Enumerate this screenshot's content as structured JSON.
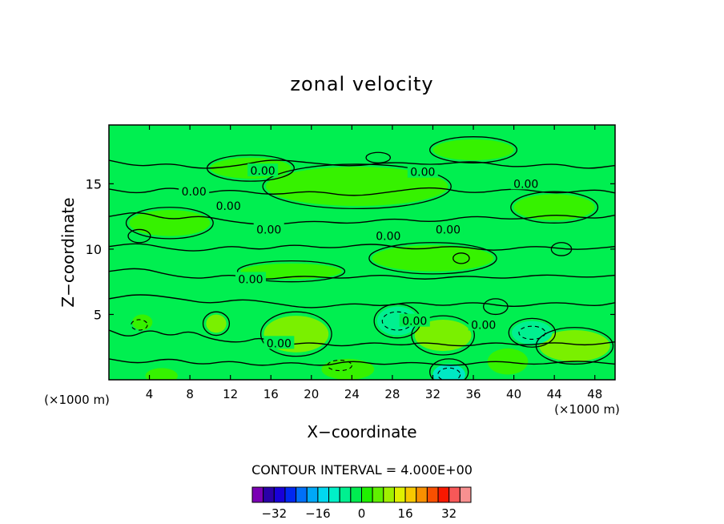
{
  "chart_data": {
    "type": "heatmap",
    "title": "zonal velocity",
    "xlabel": "X−coordinate",
    "ylabel": "Z−coordinate",
    "x_unit": "(×1000 m)",
    "z_unit": "(×1000 m)",
    "xlim": [
      0,
      50
    ],
    "ylim": [
      0,
      19.5
    ],
    "x_ticks": [
      4,
      8,
      12,
      16,
      20,
      24,
      28,
      32,
      36,
      40,
      44,
      48
    ],
    "y_ticks": [
      5,
      10,
      15
    ],
    "contour_interval_text": "CONTOUR INTERVAL = 4.000E+00",
    "contour_labels": [
      {
        "text": "0.00",
        "x": 15.2,
        "z": 16.0
      },
      {
        "text": "0.00",
        "x": 31.0,
        "z": 15.9
      },
      {
        "text": "0.00",
        "x": 41.2,
        "z": 15.0
      },
      {
        "text": "0.00",
        "x": 8.4,
        "z": 14.4
      },
      {
        "text": "0.00",
        "x": 11.8,
        "z": 13.3
      },
      {
        "text": "0.00",
        "x": 15.8,
        "z": 11.5
      },
      {
        "text": "0.00",
        "x": 27.6,
        "z": 11.0
      },
      {
        "text": "0.00",
        "x": 33.5,
        "z": 11.5
      },
      {
        "text": "0.00",
        "x": 14.0,
        "z": 7.7
      },
      {
        "text": "0.00",
        "x": 30.2,
        "z": 4.5
      },
      {
        "text": "0.00",
        "x": 37.0,
        "z": 4.2
      },
      {
        "text": "0.00",
        "x": 16.8,
        "z": 2.8
      }
    ],
    "colorbar": {
      "colors": [
        "#7a00b4",
        "#2a00a8",
        "#1800d8",
        "#0028f0",
        "#0070f8",
        "#00a8f8",
        "#00d8f0",
        "#00f0c8",
        "#00f090",
        "#00ec50",
        "#20f000",
        "#60f000",
        "#a0f000",
        "#e0f000",
        "#f8c800",
        "#f89000",
        "#f85000",
        "#f81800",
        "#f85858",
        "#f89090"
      ],
      "tick_labels": [
        "−32",
        "−16",
        "0",
        "16",
        "32"
      ],
      "tick_values": [
        -32,
        -16,
        0,
        16,
        32
      ],
      "range": [
        -40,
        40
      ]
    },
    "field_colors": {
      "background": "#00ef50",
      "positive_patch": "#36f200",
      "strong_positive_patch": "#7af000",
      "negative_patch": "#00f090",
      "strong_negative_patch": "#00e8c4"
    },
    "patches": [
      {
        "x": 18.5,
        "z": 3.5,
        "rx": 3.2,
        "rz": 1.4,
        "level": 2
      },
      {
        "x": 33.0,
        "z": 3.4,
        "rx": 2.8,
        "rz": 1.2,
        "level": 2
      },
      {
        "x": 10.6,
        "z": 4.3,
        "rx": 1.0,
        "rz": 0.7,
        "level": 2
      },
      {
        "x": 46.0,
        "z": 2.6,
        "rx": 3.5,
        "rz": 1.2,
        "level": 2
      },
      {
        "x": 23.6,
        "z": 0.8,
        "rx": 2.6,
        "rz": 0.8,
        "level": 1
      },
      {
        "x": 39.4,
        "z": 1.4,
        "rx": 2.0,
        "rz": 1.0,
        "level": 1
      },
      {
        "x": 28.5,
        "z": 4.5,
        "rx": 2.0,
        "rz": 1.1,
        "level": -1
      },
      {
        "x": 41.8,
        "z": 3.6,
        "rx": 2.0,
        "rz": 0.9,
        "level": -1
      },
      {
        "x": 33.6,
        "z": 0.4,
        "rx": 1.6,
        "rz": 0.8,
        "level": -2
      },
      {
        "x": 3.3,
        "z": 4.4,
        "rx": 1.0,
        "rz": 0.6,
        "level": 1
      },
      {
        "x": 5.2,
        "z": 0.3,
        "rx": 1.6,
        "rz": 0.6,
        "level": 1
      },
      {
        "x": 18.0,
        "z": 8.3,
        "rx": 5.0,
        "rz": 0.6,
        "level": 1
      },
      {
        "x": 32.0,
        "z": 9.3,
        "rx": 6.0,
        "rz": 1.0,
        "level": 1
      },
      {
        "x": 24.5,
        "z": 14.8,
        "rx": 9.0,
        "rz": 1.5,
        "level": 1
      },
      {
        "x": 14.0,
        "z": 16.2,
        "rx": 4.0,
        "rz": 0.8,
        "level": 1
      },
      {
        "x": 6.0,
        "z": 12.0,
        "rx": 4.0,
        "rz": 1.0,
        "level": 1
      },
      {
        "x": 44.0,
        "z": 13.2,
        "rx": 4.0,
        "rz": 1.0,
        "level": 1
      },
      {
        "x": 36.0,
        "z": 17.6,
        "rx": 4.0,
        "rz": 0.8,
        "level": 1
      }
    ],
    "contours": [
      [
        [
          0,
          16.8
        ],
        [
          3,
          16.3
        ],
        [
          6,
          16.6
        ],
        [
          9,
          16.1
        ],
        [
          13,
          16.4
        ],
        [
          16,
          16.9
        ],
        [
          20,
          16.6
        ],
        [
          24,
          16.3
        ],
        [
          28,
          16.7
        ],
        [
          32,
          16.4
        ],
        [
          36,
          16.8
        ],
        [
          40,
          16.2
        ],
        [
          44,
          16.6
        ],
        [
          47,
          16.1
        ],
        [
          50,
          16.4
        ]
      ],
      [
        [
          0,
          14.6
        ],
        [
          3,
          14.2
        ],
        [
          6,
          14.8
        ],
        [
          9,
          14.2
        ],
        [
          12,
          14.6
        ],
        [
          16,
          14.1
        ],
        [
          20,
          14.5
        ],
        [
          24,
          14.0
        ],
        [
          28,
          14.4
        ],
        [
          32,
          14.8
        ],
        [
          36,
          14.2
        ],
        [
          40,
          14.7
        ],
        [
          44,
          14.2
        ],
        [
          48,
          14.6
        ],
        [
          50,
          14.3
        ]
      ],
      [
        [
          0,
          12.5
        ],
        [
          3,
          12.9
        ],
        [
          6,
          12.2
        ],
        [
          9,
          12.6
        ],
        [
          12,
          12.1
        ],
        [
          16,
          11.8
        ],
        [
          20,
          12.2
        ],
        [
          24,
          11.9
        ],
        [
          28,
          12.4
        ],
        [
          32,
          12.0
        ],
        [
          36,
          12.6
        ],
        [
          40,
          12.2
        ],
        [
          44,
          12.7
        ],
        [
          48,
          12.3
        ],
        [
          50,
          12.6
        ]
      ],
      [
        [
          0,
          10.2
        ],
        [
          3,
          10.5
        ],
        [
          6,
          10.0
        ],
        [
          9,
          9.8
        ],
        [
          12,
          10.3
        ],
        [
          15,
          9.9
        ],
        [
          18,
          10.4
        ],
        [
          22,
          10.0
        ],
        [
          26,
          10.5
        ],
        [
          30,
          9.9
        ],
        [
          34,
          10.3
        ],
        [
          38,
          9.8
        ],
        [
          42,
          10.3
        ],
        [
          46,
          9.9
        ],
        [
          50,
          10.2
        ]
      ],
      [
        [
          0,
          8.3
        ],
        [
          3,
          8.6
        ],
        [
          6,
          8.0
        ],
        [
          9,
          7.7
        ],
        [
          12,
          8.1
        ],
        [
          15,
          7.6
        ],
        [
          19,
          8.0
        ],
        [
          23,
          7.7
        ],
        [
          27,
          8.1
        ],
        [
          31,
          7.6
        ],
        [
          35,
          8.0
        ],
        [
          39,
          7.7
        ],
        [
          43,
          8.1
        ],
        [
          47,
          7.8
        ],
        [
          50,
          8.0
        ]
      ],
      [
        [
          0,
          6.2
        ],
        [
          3,
          6.6
        ],
        [
          7,
          6.2
        ],
        [
          10,
          5.8
        ],
        [
          13,
          6.2
        ],
        [
          16,
          5.9
        ],
        [
          20,
          5.4
        ],
        [
          24,
          5.9
        ],
        [
          27,
          5.6
        ],
        [
          30,
          6.0
        ],
        [
          33,
          5.6
        ],
        [
          36,
          6.0
        ],
        [
          40,
          5.5
        ],
        [
          44,
          6.0
        ],
        [
          48,
          5.6
        ],
        [
          50,
          5.9
        ]
      ],
      [
        [
          0,
          3.8
        ],
        [
          2,
          3.2
        ],
        [
          4,
          3.9
        ],
        [
          6,
          3.3
        ],
        [
          8,
          3.8
        ],
        [
          10,
          3.1
        ],
        [
          13,
          2.8
        ],
        [
          15,
          3.3
        ],
        [
          17,
          2.6
        ],
        [
          20,
          2.9
        ],
        [
          23,
          2.5
        ],
        [
          26,
          2.9
        ],
        [
          29,
          2.6
        ],
        [
          31,
          2.9
        ],
        [
          35,
          2.5
        ],
        [
          38,
          2.9
        ],
        [
          41,
          2.6
        ],
        [
          44,
          2.9
        ],
        [
          47,
          2.6
        ],
        [
          50,
          2.9
        ]
      ],
      [
        [
          0,
          1.6
        ],
        [
          3,
          1.2
        ],
        [
          6,
          1.7
        ],
        [
          9,
          1.1
        ],
        [
          12,
          1.5
        ],
        [
          15,
          1.0
        ],
        [
          18,
          1.4
        ],
        [
          21,
          1.0
        ],
        [
          24,
          1.5
        ],
        [
          27,
          1.1
        ],
        [
          30,
          1.4
        ],
        [
          34,
          1.0
        ],
        [
          38,
          1.5
        ],
        [
          42,
          1.1
        ],
        [
          46,
          1.5
        ],
        [
          50,
          1.2
        ]
      ]
    ],
    "closed_contours": [
      {
        "x": 18.5,
        "z": 3.5,
        "rx": 3.5,
        "rz": 1.7
      },
      {
        "x": 33.0,
        "z": 3.4,
        "rx": 3.1,
        "rz": 1.5
      },
      {
        "x": 10.6,
        "z": 4.3,
        "rx": 1.3,
        "rz": 0.9
      },
      {
        "x": 46.0,
        "z": 2.6,
        "rx": 3.8,
        "rz": 1.4
      },
      {
        "x": 28.5,
        "z": 4.5,
        "rx": 2.3,
        "rz": 1.3
      },
      {
        "x": 41.8,
        "z": 3.6,
        "rx": 2.3,
        "rz": 1.1
      },
      {
        "x": 33.6,
        "z": 0.6,
        "rx": 1.9,
        "rz": 1.0
      },
      {
        "x": 24.5,
        "z": 14.8,
        "rx": 9.3,
        "rz": 1.7
      },
      {
        "x": 32.0,
        "z": 9.3,
        "rx": 6.3,
        "rz": 1.2
      },
      {
        "x": 18.0,
        "z": 8.3,
        "rx": 5.3,
        "rz": 0.8
      },
      {
        "x": 6.0,
        "z": 12.0,
        "rx": 4.3,
        "rz": 1.2
      },
      {
        "x": 44.0,
        "z": 13.2,
        "rx": 4.3,
        "rz": 1.2
      },
      {
        "x": 14.0,
        "z": 16.2,
        "rx": 4.3,
        "rz": 1.0
      },
      {
        "x": 36.0,
        "z": 17.6,
        "rx": 4.3,
        "rz": 1.0
      },
      {
        "x": 38.2,
        "z": 5.6,
        "rx": 1.2,
        "rz": 0.6
      },
      {
        "x": 44.7,
        "z": 10.0,
        "rx": 1.0,
        "rz": 0.5
      },
      {
        "x": 34.8,
        "z": 9.3,
        "rx": 0.8,
        "rz": 0.4
      },
      {
        "x": 26.6,
        "z": 17.0,
        "rx": 1.2,
        "rz": 0.4
      },
      {
        "x": 3.0,
        "z": 11.0,
        "rx": 1.1,
        "rz": 0.5
      }
    ],
    "dashed_contours": [
      {
        "x": 28.5,
        "z": 4.5,
        "rx": 1.5,
        "rz": 0.7
      },
      {
        "x": 41.8,
        "z": 3.6,
        "rx": 1.3,
        "rz": 0.5
      },
      {
        "x": 33.6,
        "z": 0.4,
        "rx": 1.1,
        "rz": 0.5
      },
      {
        "x": 3.0,
        "z": 4.2,
        "rx": 0.8,
        "rz": 0.4
      },
      {
        "x": 22.8,
        "z": 1.1,
        "rx": 1.2,
        "rz": 0.4
      }
    ]
  }
}
